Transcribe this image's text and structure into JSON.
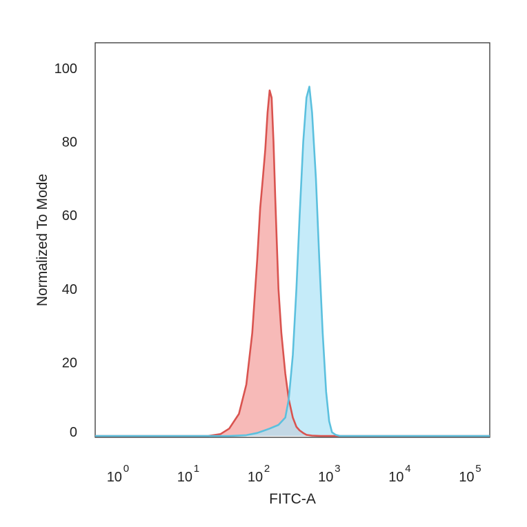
{
  "chart_data": {
    "type": "area",
    "xlabel": "FITC-A",
    "ylabel": "Normalized To Mode",
    "x_scale": "log",
    "xlim": [
      0.5,
      200000
    ],
    "ylim": [
      0,
      105
    ],
    "x_ticks": [
      {
        "base": "10",
        "exp": "0"
      },
      {
        "base": "10",
        "exp": "1"
      },
      {
        "base": "10",
        "exp": "2"
      },
      {
        "base": "10",
        "exp": "3"
      },
      {
        "base": "10",
        "exp": "4"
      },
      {
        "base": "10",
        "exp": "5"
      }
    ],
    "y_ticks": [
      "0",
      "20",
      "40",
      "60",
      "80",
      "100"
    ],
    "grid": false,
    "legend": "none",
    "series": [
      {
        "color": "#d9534f",
        "fill": "#f4a09c",
        "x": [
          0.5,
          20,
          30,
          40,
          55,
          70,
          85,
          100,
          110,
          120,
          130,
          140,
          150,
          160,
          170,
          180,
          190,
          200,
          220,
          250,
          280,
          320,
          360,
          400,
          450,
          500,
          600,
          800,
          1000,
          200000
        ],
        "y": [
          0,
          0,
          0.5,
          2,
          6,
          14,
          28,
          48,
          62,
          70,
          78,
          88,
          94,
          92,
          80,
          65,
          52,
          40,
          28,
          17,
          10,
          5,
          2.5,
          1.5,
          0.8,
          0.3,
          0.1,
          0,
          0,
          0
        ]
      },
      {
        "color": "#5bc0de",
        "fill": "#aee3f7",
        "x": [
          0.5,
          40,
          70,
          100,
          150,
          200,
          250,
          280,
          320,
          360,
          400,
          450,
          500,
          550,
          600,
          680,
          760,
          850,
          950,
          1050,
          1150,
          1300,
          1500,
          200000
        ],
        "y": [
          0,
          0,
          0.2,
          0.8,
          2,
          3,
          5,
          10,
          22,
          40,
          60,
          80,
          92,
          95,
          88,
          70,
          48,
          28,
          12,
          4,
          1,
          0.3,
          0,
          0
        ]
      }
    ]
  }
}
